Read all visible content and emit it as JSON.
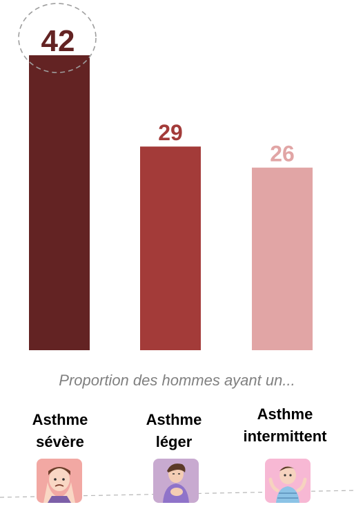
{
  "chart_data": {
    "type": "bar",
    "categories": [
      "Asthme sévère",
      "Asthme léger",
      "Asthme intermittent"
    ],
    "values": [
      42,
      29,
      26
    ],
    "ylim": [
      0,
      48
    ],
    "grid": false,
    "caption": "Proportion des hommes ayant un...",
    "category_lines": [
      [
        "Asthme",
        "sévère"
      ],
      [
        "Asthme",
        "léger"
      ],
      [
        "Asthme",
        "intermittent"
      ]
    ],
    "value_labels": [
      "42",
      "29",
      "26"
    ],
    "colors": [
      "#632323",
      "#a33b39",
      "#e1a5a5"
    ],
    "label_colors": [
      "#632323",
      "#a33b39",
      "#e1a5a5"
    ],
    "highlight_index": 0
  },
  "icons": [
    {
      "name": "distressed-person-icon",
      "bg": "#f2a8a3"
    },
    {
      "name": "coughing-person-icon",
      "bg": "#c8aad0"
    },
    {
      "name": "shrugging-child-icon",
      "bg": "#f7b8d4"
    }
  ]
}
